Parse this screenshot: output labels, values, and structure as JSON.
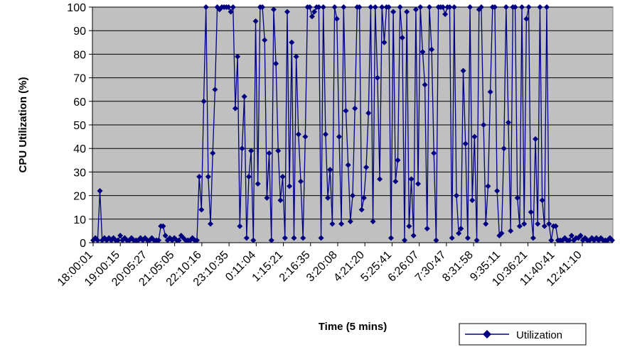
{
  "chart_data": {
    "type": "line",
    "title": "",
    "xlabel": "Time (5 mins)",
    "ylabel": "CPU Utilization (%)",
    "ylim": [
      0,
      100
    ],
    "yticks": [
      0,
      10,
      20,
      30,
      40,
      50,
      60,
      70,
      80,
      90,
      100
    ],
    "grid": "horizontal",
    "plot_background": "#C0C0C0",
    "legend": "bottom-right",
    "xtick_labels": [
      "18:00:01",
      "19:00:15",
      "20:05:27",
      "21:05:05",
      "22:10:16",
      "23:10:35",
      "0:11:04",
      "1:15:21",
      "2:16:35",
      "3:20:08",
      "4:21:20",
      "5:25:41",
      "6:26:07",
      "7:30:47",
      "8:31:58",
      "9:35:11",
      "10:36:21",
      "11:40:41",
      "12:41:10"
    ],
    "n_points": 222,
    "series": [
      {
        "name": "Utilization",
        "color": "#000080",
        "marker": "diamond",
        "values": [
          1,
          2,
          1,
          22,
          1,
          2,
          1,
          2,
          1,
          2,
          1,
          1,
          3,
          1,
          2,
          1,
          1,
          2,
          1,
          1,
          1,
          2,
          1,
          2,
          1,
          1,
          2,
          1,
          1,
          1,
          7,
          7,
          3,
          1,
          2,
          1,
          2,
          1,
          1,
          3,
          2,
          1,
          1,
          1,
          2,
          1,
          1,
          28,
          14,
          60,
          100,
          28,
          8,
          38,
          65,
          100,
          99,
          100,
          100,
          100,
          100,
          98,
          100,
          57,
          79,
          7,
          40,
          62,
          2,
          28,
          39,
          1,
          94,
          25,
          100,
          100,
          86,
          19,
          38,
          1,
          99,
          76,
          39,
          18,
          28,
          2,
          98,
          24,
          85,
          2,
          79,
          46,
          26,
          2,
          45,
          100,
          100,
          96,
          98,
          100,
          100,
          2,
          100,
          46,
          19,
          31,
          8,
          100,
          95,
          45,
          8,
          100,
          56,
          33,
          9,
          20,
          57,
          100,
          100,
          14,
          19,
          32,
          55,
          100,
          9,
          100,
          70,
          27,
          100,
          85,
          100,
          100,
          2,
          98,
          26,
          35,
          100,
          87,
          1,
          98,
          7,
          27,
          3,
          99,
          25,
          100,
          81,
          67,
          6,
          100,
          82,
          38,
          1,
          100,
          100,
          100,
          97,
          100,
          100,
          2,
          100,
          20,
          4,
          6,
          73,
          42,
          2,
          100,
          18,
          45,
          1,
          99,
          100,
          50,
          8,
          24,
          64,
          100,
          100,
          22,
          3,
          4,
          40,
          100,
          51,
          5,
          100,
          100,
          19,
          7,
          100,
          8,
          95,
          100,
          13,
          2,
          44,
          8,
          100,
          18,
          7,
          100,
          8,
          1,
          7,
          7,
          1,
          1,
          1,
          2,
          1,
          1,
          3,
          1,
          2,
          2,
          3,
          1,
          2,
          1,
          1,
          2,
          1,
          2,
          1,
          2,
          1,
          1,
          1,
          2,
          1
        ]
      }
    ]
  }
}
